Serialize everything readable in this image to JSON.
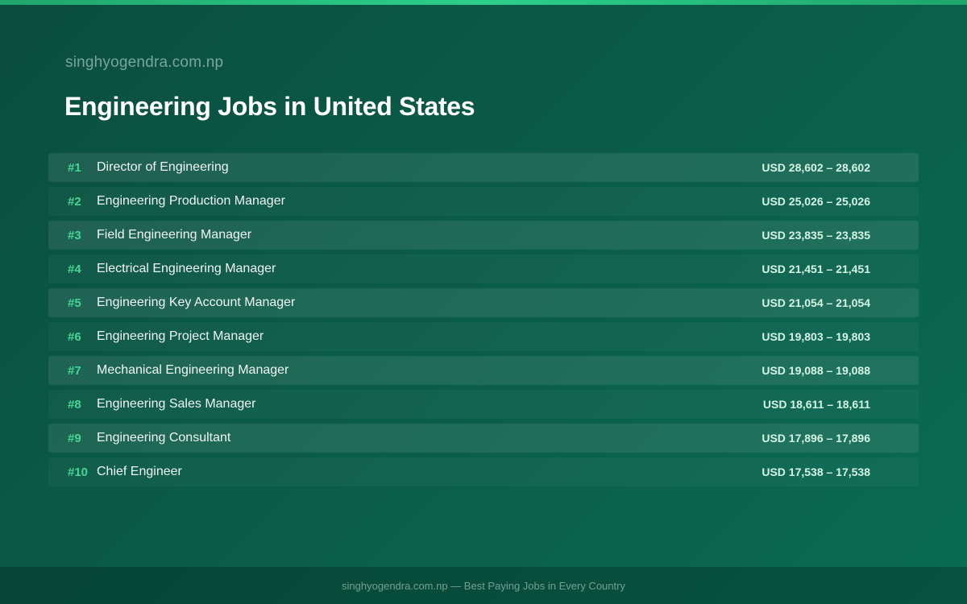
{
  "header": {
    "site": "singhyogendra.com.np",
    "title": "Engineering Jobs in United States"
  },
  "jobs": [
    {
      "rank": "#1",
      "title": "Director of Engineering",
      "salary": "USD 28,602 – 28,602"
    },
    {
      "rank": "#2",
      "title": "Engineering Production Manager",
      "salary": "USD 25,026 – 25,026"
    },
    {
      "rank": "#3",
      "title": "Field Engineering Manager",
      "salary": "USD 23,835 – 23,835"
    },
    {
      "rank": "#4",
      "title": "Electrical Engineering Manager",
      "salary": "USD 21,451 – 21,451"
    },
    {
      "rank": "#5",
      "title": "Engineering Key Account Manager",
      "salary": "USD 21,054 – 21,054"
    },
    {
      "rank": "#6",
      "title": "Engineering Project Manager",
      "salary": "USD 19,803 – 19,803"
    },
    {
      "rank": "#7",
      "title": "Mechanical Engineering Manager",
      "salary": "USD 19,088 – 19,088"
    },
    {
      "rank": "#8",
      "title": "Engineering Sales Manager",
      "salary": "USD 18,611 – 18,611"
    },
    {
      "rank": "#9",
      "title": "Engineering Consultant",
      "salary": "USD 17,896 – 17,896"
    },
    {
      "rank": "#10",
      "title": "Chief Engineer",
      "salary": "USD 17,538 – 17,538"
    }
  ],
  "footer": {
    "text": "singhyogendra.com.np — Best Paying Jobs in Every Country"
  },
  "colors": {
    "accent": "#43d694",
    "background": "#0a5a47",
    "title": "#ffffff"
  }
}
